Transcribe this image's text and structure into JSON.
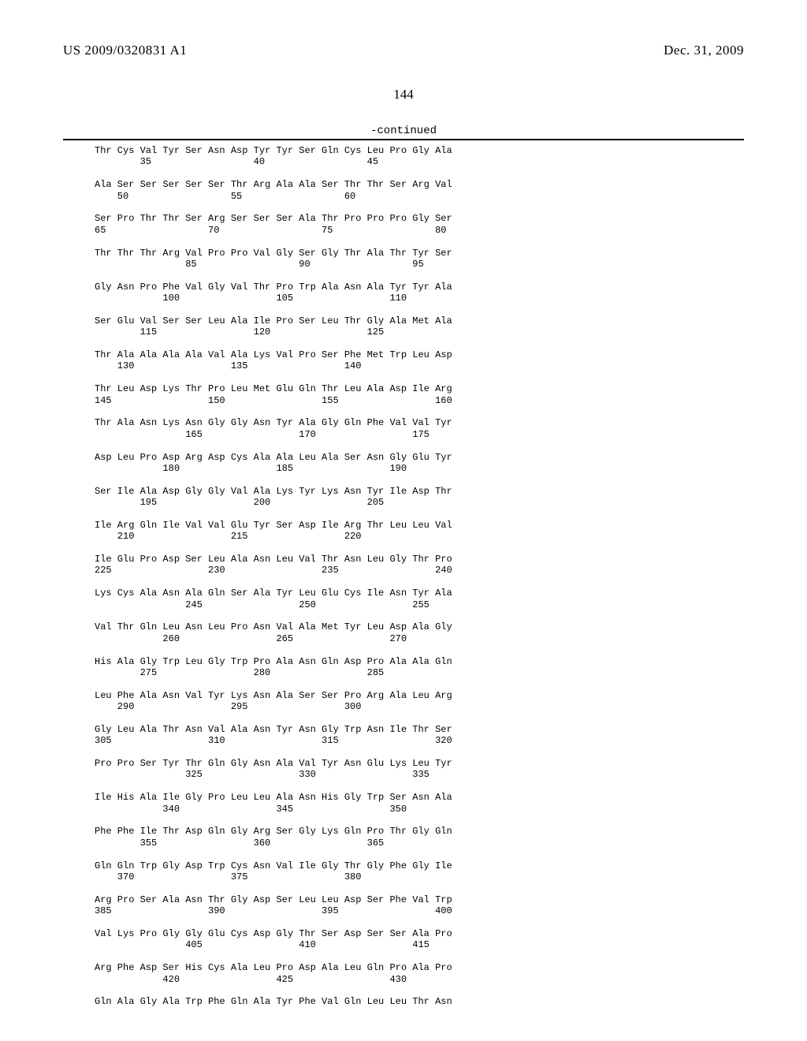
{
  "header": {
    "pub_number": "US 2009/0320831 A1",
    "pub_date": "Dec. 31, 2009"
  },
  "page_number": "144",
  "continued_label": "-continued",
  "sequence_lines": [
    "Thr Cys Val Tyr Ser Asn Asp Tyr Tyr Ser Gln Cys Leu Pro Gly Ala",
    "        35                  40                  45",
    "",
    "Ala Ser Ser Ser Ser Ser Thr Arg Ala Ala Ser Thr Thr Ser Arg Val",
    "    50                  55                  60",
    "",
    "Ser Pro Thr Thr Ser Arg Ser Ser Ser Ala Thr Pro Pro Pro Gly Ser",
    "65                  70                  75                  80",
    "",
    "Thr Thr Thr Arg Val Pro Pro Val Gly Ser Gly Thr Ala Thr Tyr Ser",
    "                85                  90                  95",
    "",
    "Gly Asn Pro Phe Val Gly Val Thr Pro Trp Ala Asn Ala Tyr Tyr Ala",
    "            100                 105                 110",
    "",
    "Ser Glu Val Ser Ser Leu Ala Ile Pro Ser Leu Thr Gly Ala Met Ala",
    "        115                 120                 125",
    "",
    "Thr Ala Ala Ala Ala Val Ala Lys Val Pro Ser Phe Met Trp Leu Asp",
    "    130                 135                 140",
    "",
    "Thr Leu Asp Lys Thr Pro Leu Met Glu Gln Thr Leu Ala Asp Ile Arg",
    "145                 150                 155                 160",
    "",
    "Thr Ala Asn Lys Asn Gly Gly Asn Tyr Ala Gly Gln Phe Val Val Tyr",
    "                165                 170                 175",
    "",
    "Asp Leu Pro Asp Arg Asp Cys Ala Ala Leu Ala Ser Asn Gly Glu Tyr",
    "            180                 185                 190",
    "",
    "Ser Ile Ala Asp Gly Gly Val Ala Lys Tyr Lys Asn Tyr Ile Asp Thr",
    "        195                 200                 205",
    "",
    "Ile Arg Gln Ile Val Val Glu Tyr Ser Asp Ile Arg Thr Leu Leu Val",
    "    210                 215                 220",
    "",
    "Ile Glu Pro Asp Ser Leu Ala Asn Leu Val Thr Asn Leu Gly Thr Pro",
    "225                 230                 235                 240",
    "",
    "Lys Cys Ala Asn Ala Gln Ser Ala Tyr Leu Glu Cys Ile Asn Tyr Ala",
    "                245                 250                 255",
    "",
    "Val Thr Gln Leu Asn Leu Pro Asn Val Ala Met Tyr Leu Asp Ala Gly",
    "            260                 265                 270",
    "",
    "His Ala Gly Trp Leu Gly Trp Pro Ala Asn Gln Asp Pro Ala Ala Gln",
    "        275                 280                 285",
    "",
    "Leu Phe Ala Asn Val Tyr Lys Asn Ala Ser Ser Pro Arg Ala Leu Arg",
    "    290                 295                 300",
    "",
    "Gly Leu Ala Thr Asn Val Ala Asn Tyr Asn Gly Trp Asn Ile Thr Ser",
    "305                 310                 315                 320",
    "",
    "Pro Pro Ser Tyr Thr Gln Gly Asn Ala Val Tyr Asn Glu Lys Leu Tyr",
    "                325                 330                 335",
    "",
    "Ile His Ala Ile Gly Pro Leu Leu Ala Asn His Gly Trp Ser Asn Ala",
    "            340                 345                 350",
    "",
    "Phe Phe Ile Thr Asp Gln Gly Arg Ser Gly Lys Gln Pro Thr Gly Gln",
    "        355                 360                 365",
    "",
    "Gln Gln Trp Gly Asp Trp Cys Asn Val Ile Gly Thr Gly Phe Gly Ile",
    "    370                 375                 380",
    "",
    "Arg Pro Ser Ala Asn Thr Gly Asp Ser Leu Leu Asp Ser Phe Val Trp",
    "385                 390                 395                 400",
    "",
    "Val Lys Pro Gly Gly Glu Cys Asp Gly Thr Ser Asp Ser Ser Ala Pro",
    "                405                 410                 415",
    "",
    "Arg Phe Asp Ser His Cys Ala Leu Pro Asp Ala Leu Gln Pro Ala Pro",
    "            420                 425                 430",
    "",
    "Gln Ala Gly Ala Trp Phe Gln Ala Tyr Phe Val Gln Leu Leu Thr Asn"
  ]
}
